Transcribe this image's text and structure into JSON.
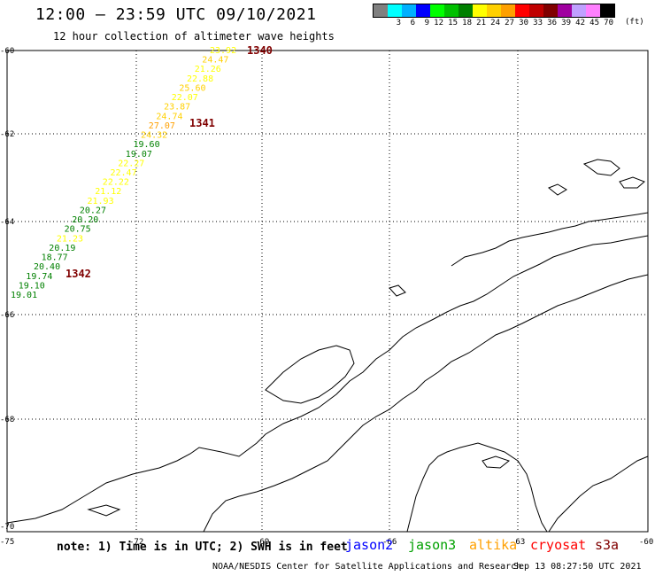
{
  "title": "12:00 – 23:59 UTC 09/10/2021",
  "subtitle": "12 hour collection of altimeter wave heights",
  "scale": {
    "colors": [
      "#808080",
      "#00ffff",
      "#00b0ff",
      "#0000ff",
      "#00ff00",
      "#00c000",
      "#008000",
      "#ffff00",
      "#ffd000",
      "#ffa000",
      "#ff0000",
      "#c00000",
      "#800000",
      "#a000a0",
      "#c0a0ff",
      "#ff80ff",
      "#000000"
    ],
    "labels": [
      "",
      "3",
      "6",
      "9",
      "12",
      "15",
      "18",
      "21",
      "24",
      "27",
      "30",
      "33",
      "36",
      "39",
      "42",
      "45",
      "70"
    ],
    "unit": "(ft)"
  },
  "map": {
    "lat_labels": [
      "-60",
      "-62",
      "-64",
      "-66",
      "-68",
      "-70"
    ],
    "lon_labels": [
      "-75",
      "-72",
      "-69",
      "-66",
      "-63",
      "-60"
    ]
  },
  "passes": [
    {
      "label": "1340",
      "color": "#800000"
    },
    {
      "label": "1341",
      "color": "#800000"
    },
    {
      "label": "1342",
      "color": "#800000"
    }
  ],
  "wave_readings": [
    {
      "value": "23.92",
      "color": "#ffff00"
    },
    {
      "value": "24.47",
      "color": "#ffd000"
    },
    {
      "value": "21.26",
      "color": "#ffff00"
    },
    {
      "value": "22.88",
      "color": "#ffff00"
    },
    {
      "value": "25.60",
      "color": "#ffd000"
    },
    {
      "value": "22.07",
      "color": "#ffff00"
    },
    {
      "value": "23.87",
      "color": "#ffd000"
    },
    {
      "value": "24.74",
      "color": "#ffd000"
    },
    {
      "value": "27.07",
      "color": "#ffa000"
    },
    {
      "value": "24.32",
      "color": "#ffd000"
    },
    {
      "value": "19.60",
      "color": "#008000"
    },
    {
      "value": "19.07",
      "color": "#008000"
    },
    {
      "value": "22.27",
      "color": "#ffff00"
    },
    {
      "value": "22.47",
      "color": "#ffff00"
    },
    {
      "value": "22.22",
      "color": "#ffff00"
    },
    {
      "value": "21.12",
      "color": "#ffff00"
    },
    {
      "value": "21.93",
      "color": "#ffff00"
    },
    {
      "value": "20.27",
      "color": "#008000"
    },
    {
      "value": "20.20",
      "color": "#008000"
    },
    {
      "value": "20.75",
      "color": "#008000"
    },
    {
      "value": "21.23",
      "color": "#ffff00"
    },
    {
      "value": "20.19",
      "color": "#008000"
    },
    {
      "value": "18.77",
      "color": "#008000"
    },
    {
      "value": "20.40",
      "color": "#008000"
    },
    {
      "value": "19.74",
      "color": "#008000"
    },
    {
      "value": "19.10",
      "color": "#008000"
    },
    {
      "value": "19.01",
      "color": "#008000"
    }
  ],
  "note": "note: 1) Time is in UTC; 2) SWH is in feet",
  "legend": [
    {
      "name": "jason2",
      "color": "#0000ff"
    },
    {
      "name": "jason3",
      "color": "#00a000"
    },
    {
      "name": "altika",
      "color": "#ffa000"
    },
    {
      "name": "cryosat",
      "color": "#ff0000"
    },
    {
      "name": "s3a",
      "color": "#800000"
    }
  ],
  "credit": "NOAA/NESDIS Center for Satellite Applications and Research",
  "generated": "Sep 13 08:27:50 UTC 2021"
}
